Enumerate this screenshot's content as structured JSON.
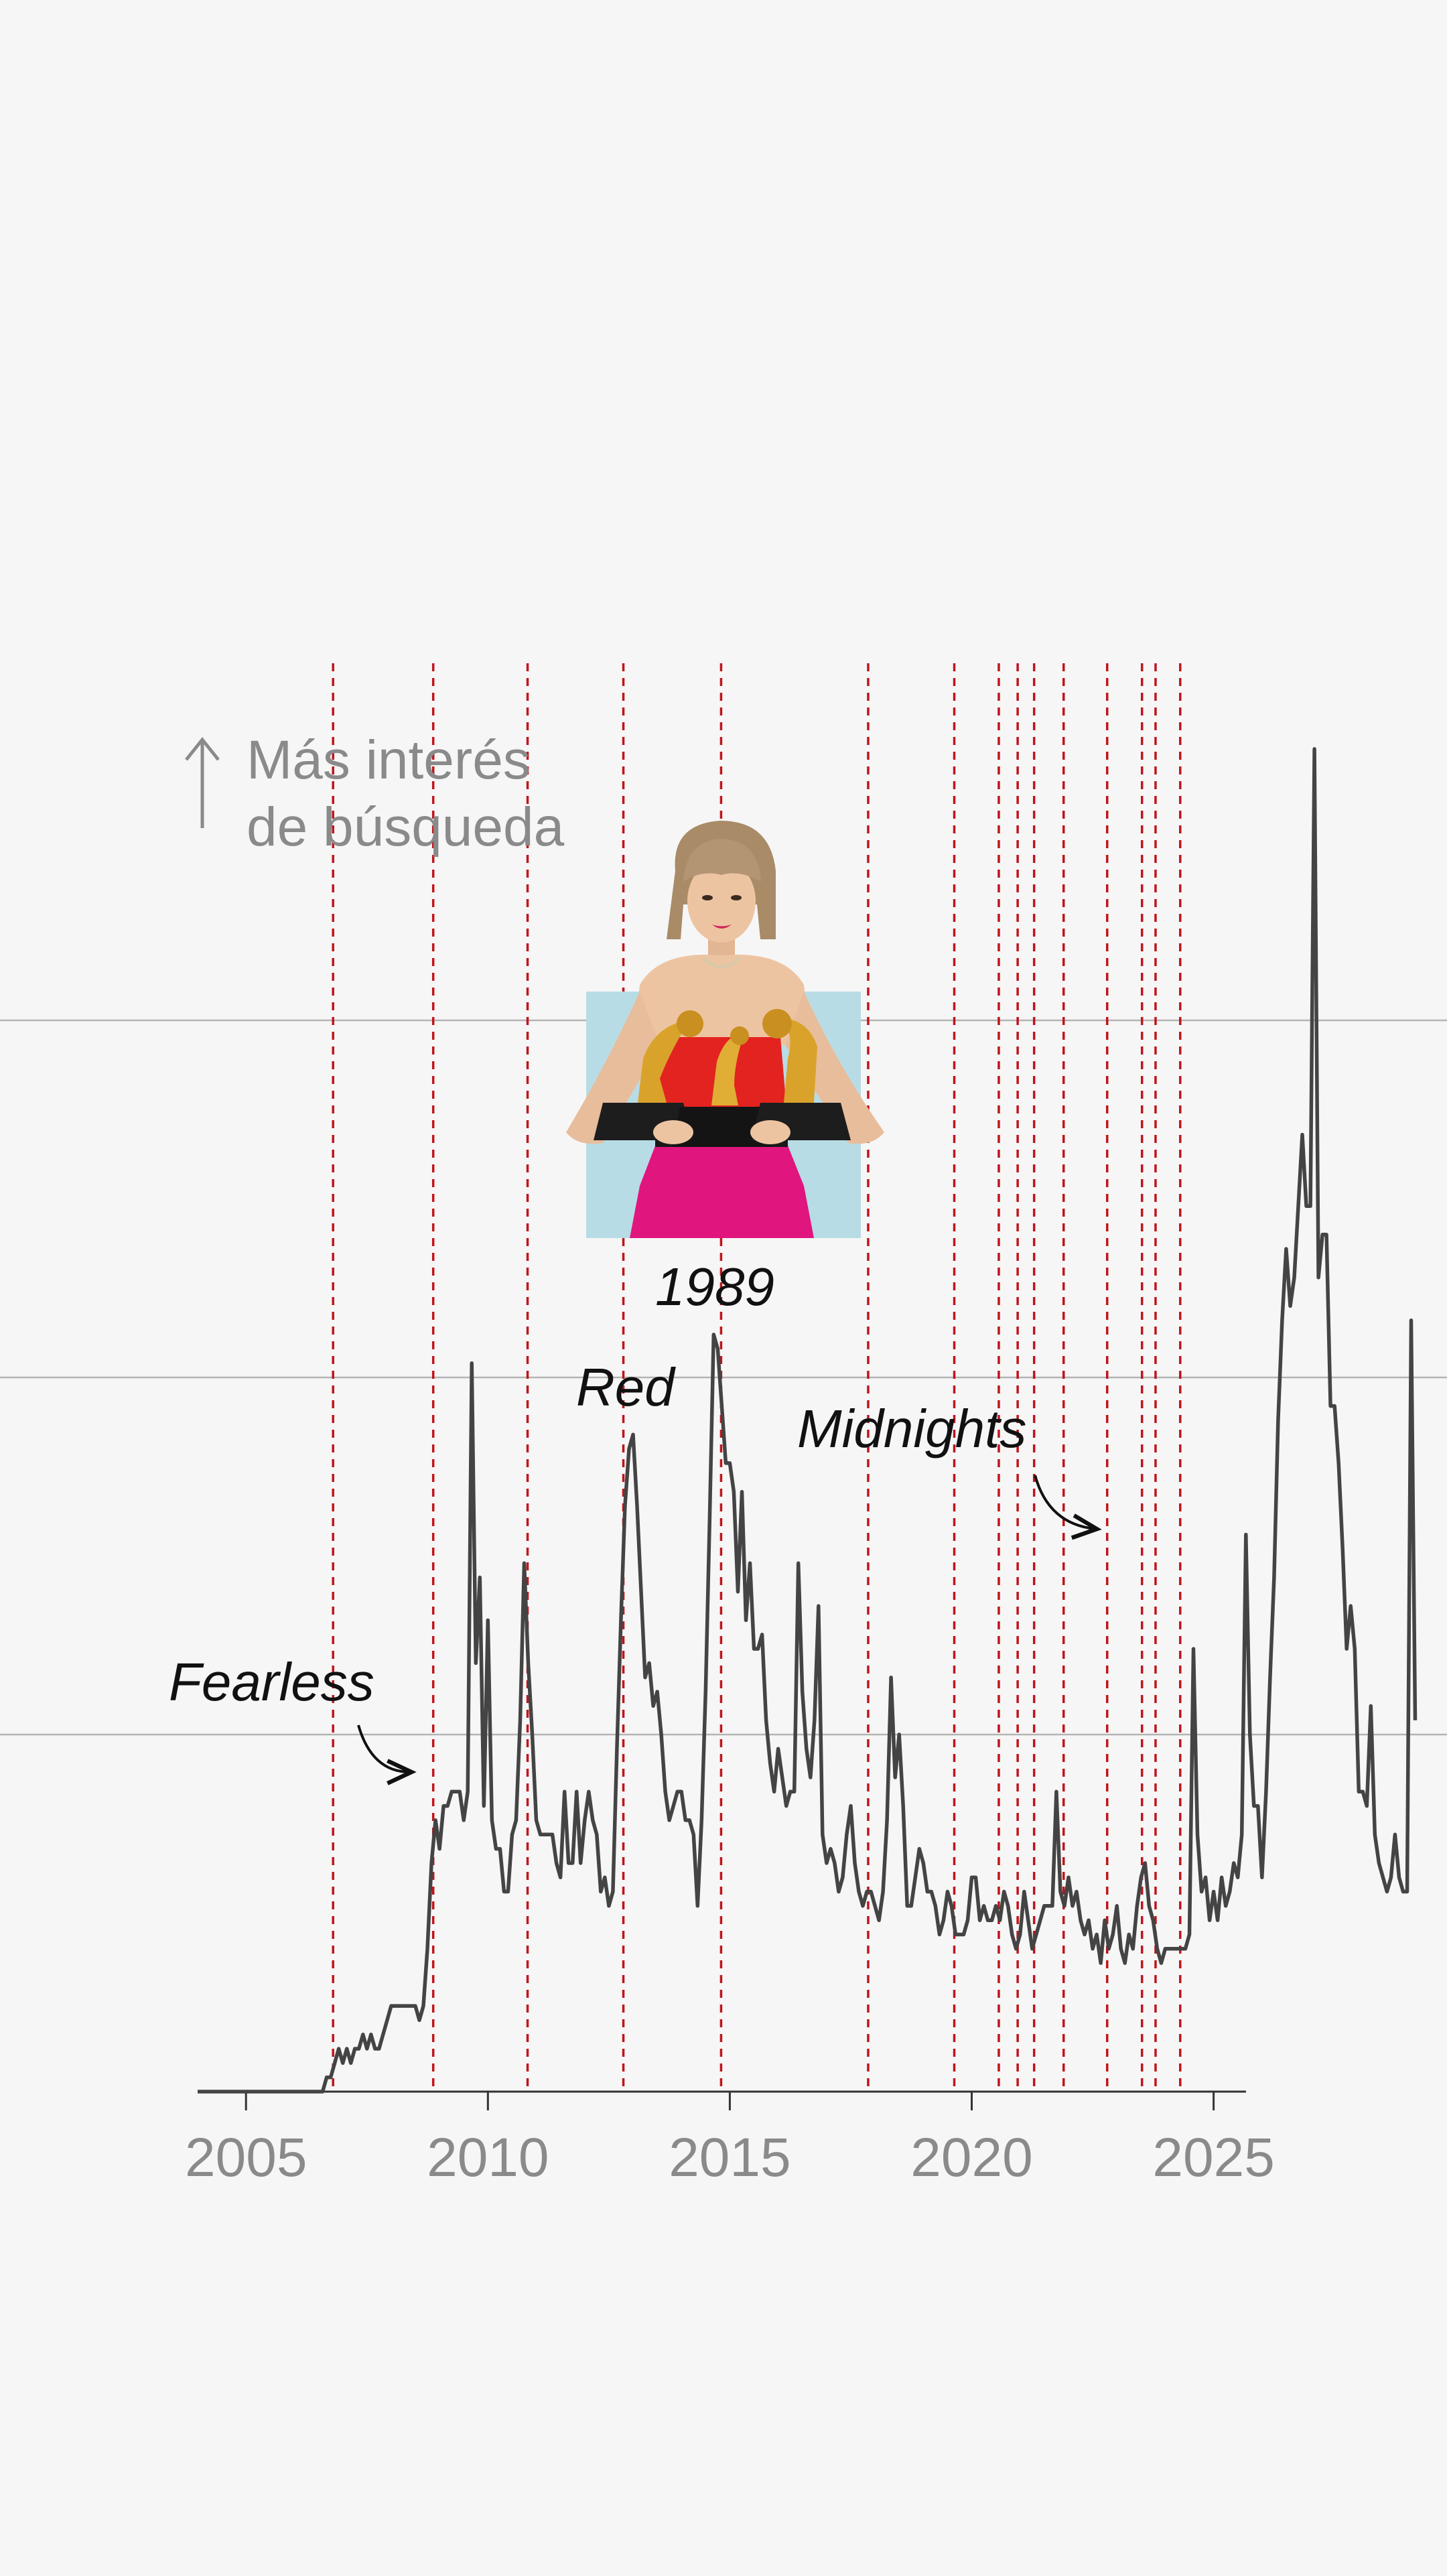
{
  "chart_data": {
    "type": "line",
    "title": "",
    "xlabel": "",
    "ylabel_lines": [
      "Más interés",
      "de búsqueda"
    ],
    "xlim": [
      2004.0,
      2025.67
    ],
    "ylim": [
      0,
      100
    ],
    "x_ticks": [
      2005,
      2010,
      2015,
      2020,
      2025
    ],
    "x_tick_labels": [
      "2005",
      "2010",
      "2015",
      "2020",
      "2025"
    ],
    "y_gridlines": [
      25,
      50,
      75
    ],
    "grid": "horizontal",
    "line_color": "#444444",
    "release_line_color": "#c0141c",
    "photo_background_color": "#b8dce6",
    "series": [
      {
        "values_start": 2004.0,
        "values_step_months": 1,
        "values": [
          0,
          0,
          0,
          0,
          0,
          0,
          0,
          0,
          0,
          0,
          0,
          0,
          0,
          0,
          0,
          0,
          0,
          0,
          0,
          0,
          0,
          0,
          0,
          0,
          0,
          0,
          0,
          0,
          0,
          0,
          0,
          0,
          1,
          1,
          2,
          3,
          2,
          3,
          2,
          3,
          3,
          4,
          3,
          4,
          3,
          3,
          4,
          5,
          6,
          6,
          6,
          6,
          6,
          6,
          6,
          5,
          6,
          10,
          16,
          19,
          17,
          20,
          20,
          21,
          21,
          21,
          19,
          21,
          51,
          30,
          36,
          20,
          33,
          19,
          17,
          17,
          14,
          14,
          18,
          19,
          26,
          37,
          30,
          25,
          19,
          18,
          18,
          18,
          18,
          16,
          15,
          21,
          16,
          16,
          21,
          16,
          19,
          21,
          19,
          18,
          14,
          15,
          13,
          14,
          24,
          33,
          41,
          45,
          46,
          41,
          35,
          29,
          30,
          27,
          28,
          25,
          21,
          19,
          20,
          21,
          21,
          19,
          19,
          18,
          13,
          19,
          28,
          40,
          53,
          52,
          48,
          44,
          44,
          42,
          35,
          42,
          33,
          37,
          31,
          31,
          32,
          26,
          23,
          21,
          24,
          22,
          20,
          21,
          21,
          37,
          28,
          24,
          22,
          26,
          34,
          18,
          16,
          17,
          16,
          14,
          15,
          18,
          20,
          16,
          14,
          13,
          14,
          14,
          13,
          12,
          14,
          19,
          29,
          22,
          25,
          20,
          13,
          13,
          15,
          17,
          16,
          14,
          14,
          13,
          11,
          12,
          14,
          13,
          11,
          11,
          11,
          12,
          15,
          15,
          12,
          13,
          12,
          12,
          13,
          12,
          14,
          13,
          11,
          10,
          11,
          14,
          12,
          10,
          11,
          12,
          13,
          13,
          13,
          21,
          14,
          13,
          15,
          13,
          14,
          12,
          11,
          12,
          10,
          11,
          9,
          12,
          10,
          11,
          13,
          10,
          9,
          11,
          10,
          13,
          15,
          16,
          13,
          12,
          10,
          9,
          10,
          10,
          10,
          10,
          10,
          10,
          11,
          31,
          18,
          14,
          15,
          12,
          14,
          12,
          15,
          13,
          14,
          16,
          15,
          18,
          39,
          25,
          20,
          20,
          15,
          21,
          29,
          36,
          47,
          54,
          59,
          55,
          57,
          62,
          67,
          62,
          62,
          94,
          57,
          60,
          60,
          48,
          48,
          44,
          38,
          31,
          34,
          31,
          21,
          21,
          20,
          27,
          18,
          16,
          15,
          14,
          15,
          18,
          15,
          14,
          14,
          54,
          26
        ]
      }
    ],
    "release_markers_x": [
      2006.8,
      2008.87,
      2010.82,
      2012.8,
      2014.82,
      2017.86,
      2019.64,
      2020.56,
      2020.95,
      2021.29,
      2021.9,
      2022.8,
      2023.52,
      2023.8,
      2024.31
    ],
    "annotations": [
      {
        "label": "Fearless",
        "x": 2008.87
      },
      {
        "label": "Red",
        "x": 2012.8
      },
      {
        "label": "1989",
        "x": 2014.82
      },
      {
        "label": "Midnights",
        "x": 2022.8
      }
    ]
  }
}
